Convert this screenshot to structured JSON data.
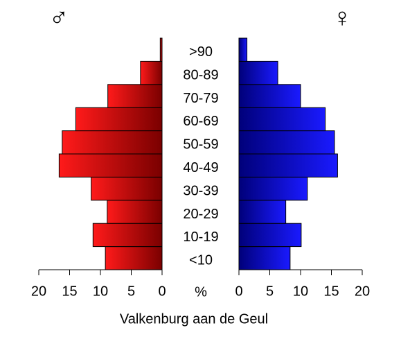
{
  "chart_data": {
    "type": "pyramid",
    "xlabel": "Valkenburg aan de Geul",
    "axis_unit": "%",
    "categories": [
      "<10",
      "10-19",
      "20-29",
      "30-39",
      "40-49",
      "50-59",
      "60-69",
      "70-79",
      "80-89",
      ">90"
    ],
    "series": [
      {
        "name": "♂",
        "side": "left",
        "gradient": [
          "#ff1a1a",
          "#7a0000"
        ],
        "values": [
          9.2,
          11.2,
          8.9,
          11.5,
          16.7,
          16.2,
          14.0,
          8.8,
          3.5,
          0.3
        ]
      },
      {
        "name": "♀",
        "side": "right",
        "gradient": [
          "#00007a",
          "#1a1aff"
        ],
        "values": [
          8.3,
          10.1,
          7.6,
          11.1,
          16.0,
          15.5,
          14.0,
          10.0,
          6.3,
          1.3
        ]
      }
    ],
    "xlim": [
      0,
      20
    ],
    "xticks": [
      0,
      5,
      10,
      15,
      20
    ]
  }
}
